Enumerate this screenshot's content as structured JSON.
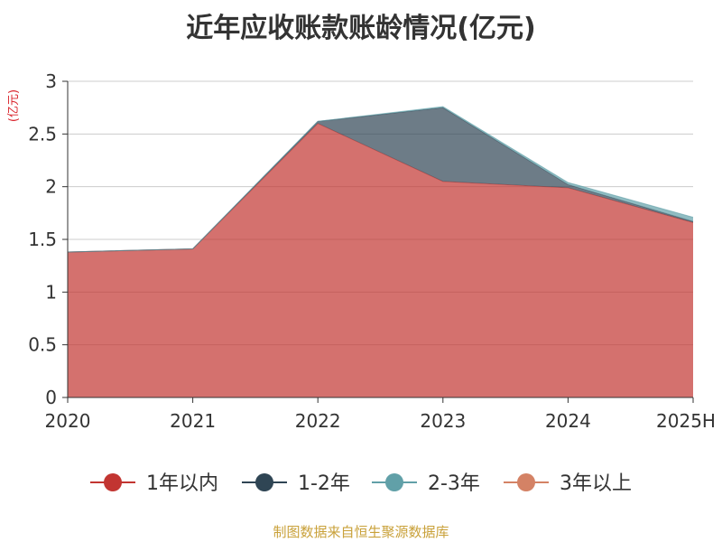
{
  "chart_data": {
    "type": "area",
    "title": "近年应收账款账龄情况(亿元)",
    "ylabel": "(亿元)",
    "xlabel": "",
    "categories": [
      "2020",
      "2021",
      "2022",
      "2023",
      "2024",
      "2025H"
    ],
    "ylim": [
      0,
      3
    ],
    "yticks": [
      "0",
      "0.5",
      "1",
      "1.5",
      "2",
      "2.5",
      "3"
    ],
    "stacked": true,
    "grid": true,
    "legend_position": "bottom",
    "series": [
      {
        "name": "1年以内",
        "values": [
          1.38,
          1.41,
          2.6,
          2.05,
          1.99,
          1.66
        ],
        "color": "#c23531"
      },
      {
        "name": "1-2年",
        "values": [
          0.0,
          0.0,
          0.02,
          0.7,
          0.03,
          0.01
        ],
        "color": "#2f4554"
      },
      {
        "name": "2-3年",
        "values": [
          0.0,
          0.0,
          0.0,
          0.01,
          0.02,
          0.04
        ],
        "color": "#61a0a8"
      },
      {
        "name": "3年以上",
        "values": [
          0.0,
          0.0,
          0.0,
          0.0,
          0.0,
          0.0
        ],
        "color": "#d48265"
      }
    ]
  },
  "source": "制图数据来自恒生聚源数据库"
}
